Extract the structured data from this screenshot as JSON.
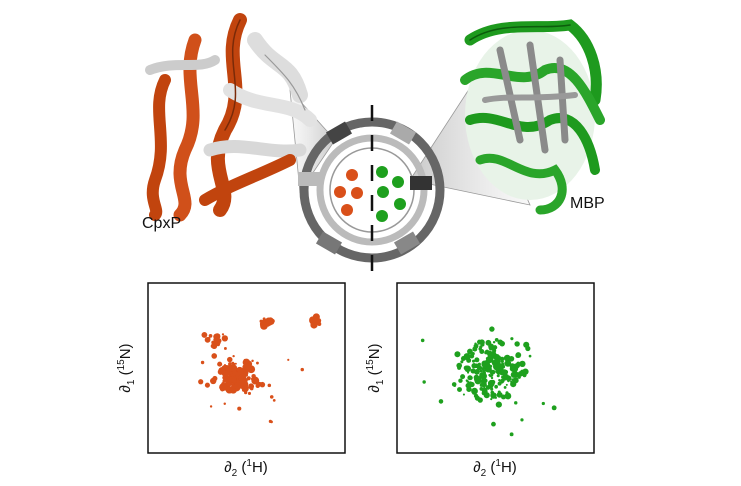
{
  "proteins": {
    "left": "CpxP",
    "right": "MBP"
  },
  "panels": [
    {
      "y_label": {
        "symbol": "∂",
        "index": "1",
        "open": " (",
        "isotope": "15",
        "element": "N)"
      },
      "x_label": {
        "symbol": "∂",
        "index": "2",
        "open": " (",
        "isotope": "1",
        "element": "H)"
      }
    },
    {
      "y_label": {
        "symbol": "∂",
        "index": "1",
        "open": " (",
        "isotope": "15",
        "element": "N)"
      },
      "x_label": {
        "symbol": "∂",
        "index": "2",
        "open": " (",
        "isotope": "1",
        "element": "H)"
      }
    }
  ]
}
